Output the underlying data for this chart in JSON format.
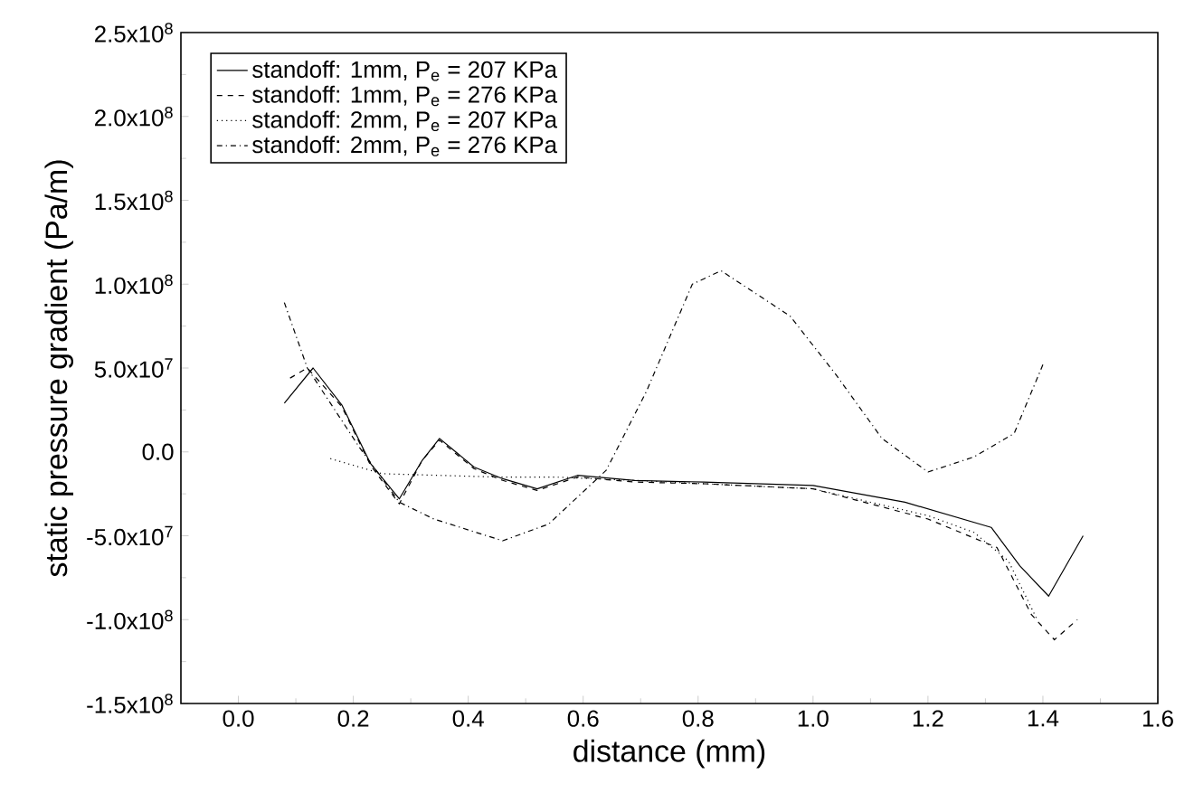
{
  "chart_data": {
    "type": "line",
    "xlabel": "distance (mm)",
    "ylabel": "static pressure gradient (Pa/m)",
    "xlim": [
      -0.1,
      1.6
    ],
    "ylim": [
      -150000000,
      250000000
    ],
    "xticks": [
      {
        "value": 0,
        "label": "0.0"
      },
      0.2,
      0.4,
      0.6,
      0.8,
      {
        "value": 1,
        "label": "1.0"
      },
      1.2,
      1.4,
      1.6
    ],
    "yticks": [
      {
        "value": -150000000,
        "label": "-1.5x10$^{8}$"
      },
      {
        "value": -100000000,
        "label": "-1.0x10$^{8}$"
      },
      {
        "value": -50000000,
        "label": "-5.0x10$^{7}$"
      },
      {
        "value": 0,
        "label": "0.0"
      },
      {
        "value": 50000000,
        "label": "5.0x10$^{7}$"
      },
      {
        "value": 100000000,
        "label": "1.0x10$^{8}$"
      },
      {
        "value": 150000000,
        "label": "1.5x10$^{8}$"
      },
      {
        "value": 200000000,
        "label": "2.0x10$^{8}$"
      },
      {
        "value": 250000000,
        "label": "2.5x10$^{8}$"
      }
    ],
    "legend": "top left",
    "grid": false,
    "marker": "none",
    "series": [
      {
        "name": "standoff: 1mm, P$_{e}$ = 207 KPa",
        "color": "#000000",
        "line_style": "solid",
        "x": [
          0.08,
          0.13,
          0.18,
          0.23,
          0.28,
          0.32,
          0.35,
          0.41,
          0.46,
          0.52,
          0.59,
          0.69,
          0.81,
          1.0,
          1.16,
          1.31,
          1.36,
          1.41,
          1.47
        ],
        "values": [
          29000000,
          50000000,
          28000000,
          -7000000,
          -28000000,
          -5000000,
          8000000,
          -9000000,
          -16000000,
          -22000000,
          -14000000,
          -17000000,
          -18000000,
          -20000000,
          -30000000,
          -45000000,
          -68000000,
          -86000000,
          -50000000
        ]
      },
      {
        "name": "standoff: 1mm, P$_{e}$ = 276 KPa",
        "color": "#000000",
        "line_style": "dashed",
        "x": [
          0.09,
          0.12,
          0.18,
          0.23,
          0.28,
          0.32,
          0.35,
          0.41,
          0.46,
          0.52,
          0.59,
          0.69,
          0.81,
          1.0,
          1.2,
          1.32,
          1.38,
          1.42,
          1.46
        ],
        "values": [
          44000000,
          50000000,
          27000000,
          -8000000,
          -31000000,
          -5000000,
          7000000,
          -10000000,
          -17000000,
          -23000000,
          -15000000,
          -18000000,
          -19000000,
          -22000000,
          -40000000,
          -57000000,
          -97000000,
          -112000000,
          -100000000
        ]
      },
      {
        "name": "standoff: 2mm, P$_{e}$ = 207 KPa",
        "color": "#000000",
        "line_style": "dotted",
        "x": [
          0.16,
          0.25,
          0.35,
          0.45,
          0.55,
          0.62,
          0.69,
          0.81,
          1.0,
          1.2,
          1.28,
          1.34,
          1.39
        ],
        "values": [
          -4000000,
          -13000000,
          -14000000,
          -15000000,
          -15000000,
          -16000000,
          -17000000,
          -19000000,
          -22000000,
          -38000000,
          -48000000,
          -65000000,
          -100000000
        ]
      },
      {
        "name": "standoff: 2mm, P$_{e}$ = 276 KPa",
        "color": "#000000",
        "line_style": "dashdot",
        "x": [
          0.08,
          0.12,
          0.21,
          0.28,
          0.34,
          0.46,
          0.54,
          0.64,
          0.71,
          0.79,
          0.84,
          0.96,
          1.04,
          1.12,
          1.2,
          1.28,
          1.35,
          1.4
        ],
        "values": [
          89000000,
          50000000,
          3000000,
          -30000000,
          -40000000,
          -53000000,
          -43000000,
          -11000000,
          36000000,
          100000000,
          108000000,
          81000000,
          46000000,
          8000000,
          -12000000,
          -3000000,
          11000000,
          52000000
        ]
      }
    ]
  }
}
